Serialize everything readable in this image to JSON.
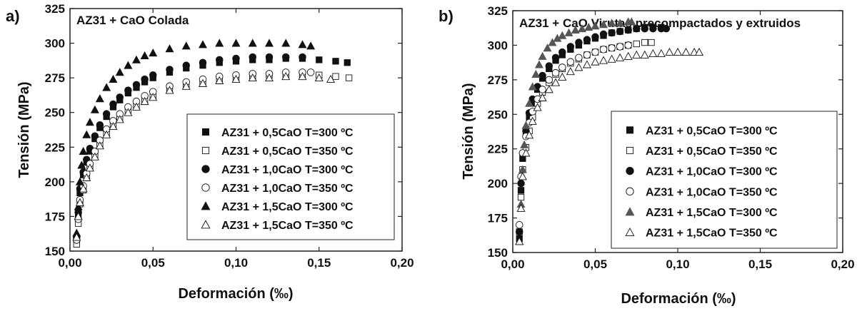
{
  "colors": {
    "ink": "#111111",
    "filled_a": "#111111",
    "filled_b_triangle": "#555555",
    "open": "#ffffff"
  },
  "chart_data": [
    {
      "panel": "a)",
      "type": "scatter",
      "title": "AZ31 + CaO Colada",
      "xlabel": "Deformación (‰)",
      "ylabel": "Tensión (MPa)",
      "xlim": [
        0,
        0.2
      ],
      "ylim": [
        150,
        325
      ],
      "xticks": [
        "0,00",
        "0,05",
        "0,10",
        "0,15",
        "0,20"
      ],
      "yticks": [
        "150",
        "175",
        "200",
        "225",
        "250",
        "275",
        "300",
        "325"
      ],
      "grid": false,
      "legend_position": "lower-right",
      "series": [
        {
          "name": "AZ31 + 0,5CaO  T=300 ºC",
          "marker": "square",
          "filled": true,
          "x": [
            0.004,
            0.005,
            0.006,
            0.008,
            0.01,
            0.012,
            0.015,
            0.018,
            0.022,
            0.026,
            0.03,
            0.035,
            0.04,
            0.045,
            0.05,
            0.06,
            0.07,
            0.08,
            0.09,
            0.1,
            0.11,
            0.12,
            0.13,
            0.14,
            0.15,
            0.16,
            0.167
          ],
          "y": [
            158,
            175,
            192,
            205,
            214,
            222,
            231,
            239,
            247,
            254,
            259,
            264,
            268,
            272,
            275,
            279,
            282,
            284,
            286,
            287,
            288,
            288,
            289,
            289,
            288,
            287,
            286
          ]
        },
        {
          "name": "AZ31 + 0,5CaO  T=350 ºC",
          "marker": "square",
          "filled": false,
          "x": [
            0.004,
            0.005,
            0.006,
            0.008,
            0.01,
            0.012,
            0.015,
            0.018,
            0.022,
            0.026,
            0.03,
            0.035,
            0.04,
            0.045,
            0.05,
            0.06,
            0.07,
            0.08,
            0.09,
            0.1,
            0.11,
            0.12,
            0.13,
            0.14,
            0.15,
            0.16,
            0.168
          ],
          "y": [
            155,
            170,
            184,
            194,
            203,
            210,
            219,
            227,
            235,
            241,
            246,
            251,
            255,
            259,
            262,
            266,
            270,
            272,
            274,
            275,
            276,
            277,
            277,
            277,
            277,
            276,
            275
          ]
        },
        {
          "name": "AZ31 + 1,0CaO  T=300 ºC",
          "marker": "circle",
          "filled": true,
          "x": [
            0.004,
            0.005,
            0.006,
            0.008,
            0.01,
            0.012,
            0.015,
            0.018,
            0.022,
            0.026,
            0.03,
            0.035,
            0.04,
            0.045,
            0.05,
            0.06,
            0.07,
            0.08,
            0.09,
            0.1,
            0.11,
            0.12,
            0.13,
            0.14
          ],
          "y": [
            160,
            178,
            195,
            207,
            216,
            224,
            233,
            241,
            249,
            256,
            261,
            266,
            270,
            274,
            277,
            281,
            284,
            286,
            288,
            289,
            290,
            290,
            290,
            290
          ]
        },
        {
          "name": "AZ31 + 1,0CaO  T=350 ºC",
          "marker": "circle",
          "filled": false,
          "x": [
            0.004,
            0.005,
            0.006,
            0.008,
            0.01,
            0.012,
            0.015,
            0.018,
            0.022,
            0.026,
            0.03,
            0.035,
            0.04,
            0.045,
            0.05,
            0.06,
            0.07,
            0.08,
            0.09,
            0.1,
            0.11,
            0.12,
            0.13,
            0.14,
            0.145
          ],
          "y": [
            158,
            173,
            187,
            197,
            206,
            213,
            222,
            230,
            238,
            244,
            249,
            254,
            258,
            262,
            265,
            269,
            272,
            274,
            276,
            277,
            278,
            278,
            279,
            279,
            279
          ]
        },
        {
          "name": "AZ31 + 1,5CaO  T=300 ºC",
          "marker": "triangle",
          "filled": true,
          "x": [
            0.004,
            0.005,
            0.006,
            0.007,
            0.008,
            0.01,
            0.012,
            0.015,
            0.018,
            0.022,
            0.026,
            0.03,
            0.035,
            0.04,
            0.045,
            0.05,
            0.06,
            0.07,
            0.08,
            0.09,
            0.1,
            0.11,
            0.12,
            0.13,
            0.14,
            0.145
          ],
          "y": [
            163,
            182,
            200,
            212,
            222,
            234,
            243,
            252,
            260,
            268,
            274,
            279,
            284,
            288,
            291,
            293,
            296,
            298,
            299,
            300,
            300,
            300,
            300,
            300,
            299,
            298
          ]
        },
        {
          "name": "AZ31 + 1,5CaO  T=350 ºC",
          "marker": "triangle",
          "filled": false,
          "x": [
            0.004,
            0.005,
            0.006,
            0.008,
            0.01,
            0.012,
            0.015,
            0.018,
            0.022,
            0.026,
            0.03,
            0.035,
            0.04,
            0.045,
            0.05,
            0.06,
            0.07,
            0.08,
            0.09,
            0.1,
            0.11,
            0.12,
            0.13,
            0.14,
            0.15,
            0.157
          ],
          "y": [
            160,
            175,
            185,
            195,
            203,
            210,
            218,
            226,
            234,
            240,
            245,
            250,
            254,
            258,
            261,
            266,
            269,
            271,
            273,
            274,
            275,
            275,
            276,
            276,
            275,
            274
          ]
        }
      ]
    },
    {
      "panel": "b)",
      "type": "scatter",
      "title": "AZ31 + CaO Virutas precompactados y extruidos",
      "xlabel": "Deformación (‰)",
      "ylabel": "Tensión (MPa)",
      "xlim": [
        0,
        0.2
      ],
      "ylim": [
        150,
        325
      ],
      "xticks": [
        "0,00",
        "0,05",
        "0,10",
        "0,15",
        "0,20"
      ],
      "yticks": [
        "150",
        "175",
        "200",
        "225",
        "250",
        "275",
        "300",
        "325"
      ],
      "grid": false,
      "legend_position": "lower-right",
      "series": [
        {
          "name": "AZ31 + 0,5CaO  T=300 ºC",
          "marker": "square",
          "filled": true,
          "x": [
            0.004,
            0.005,
            0.006,
            0.008,
            0.01,
            0.012,
            0.015,
            0.018,
            0.022,
            0.026,
            0.03,
            0.035,
            0.04,
            0.045,
            0.05,
            0.055,
            0.06,
            0.065,
            0.07,
            0.075,
            0.08,
            0.085,
            0.09
          ],
          "y": [
            160,
            195,
            218,
            235,
            248,
            258,
            268,
            276,
            283,
            289,
            293,
            297,
            300,
            303,
            305,
            307,
            309,
            310,
            311,
            312,
            313,
            313,
            313
          ]
        },
        {
          "name": "AZ31 + 0,5CaO  T=350 ºC",
          "marker": "square",
          "filled": false,
          "x": [
            0.004,
            0.005,
            0.006,
            0.008,
            0.01,
            0.012,
            0.015,
            0.018,
            0.022,
            0.026,
            0.03,
            0.035,
            0.04,
            0.045,
            0.05,
            0.055,
            0.06,
            0.065,
            0.07,
            0.075,
            0.08,
            0.084
          ],
          "y": [
            165,
            190,
            210,
            226,
            238,
            248,
            258,
            266,
            273,
            279,
            283,
            287,
            290,
            293,
            295,
            297,
            298,
            299,
            300,
            301,
            302,
            302
          ]
        },
        {
          "name": "AZ31 + 1,0CaO  T=300 ºC",
          "marker": "circle",
          "filled": true,
          "x": [
            0.004,
            0.005,
            0.006,
            0.008,
            0.01,
            0.012,
            0.015,
            0.018,
            0.022,
            0.026,
            0.03,
            0.035,
            0.04,
            0.045,
            0.05,
            0.055,
            0.06,
            0.065,
            0.07,
            0.075,
            0.08,
            0.085,
            0.09,
            0.093
          ],
          "y": [
            165,
            200,
            222,
            238,
            251,
            261,
            270,
            278,
            285,
            291,
            295,
            299,
            302,
            304,
            306,
            308,
            309,
            310,
            311,
            312,
            312,
            312,
            312,
            312
          ]
        },
        {
          "name": "AZ31 + 1,0CaO  T=350 ºC",
          "marker": "circle",
          "filled": false,
          "x": [
            0.004,
            0.005,
            0.006,
            0.008,
            0.01,
            0.012,
            0.015,
            0.018,
            0.022,
            0.026,
            0.03,
            0.035,
            0.04,
            0.045,
            0.05,
            0.055,
            0.06,
            0.065,
            0.07
          ],
          "y": [
            170,
            205,
            222,
            234,
            244,
            252,
            261,
            268,
            275,
            280,
            284,
            288,
            291,
            293,
            295,
            297,
            298,
            299,
            300
          ]
        },
        {
          "name": "AZ31 + 1,5CaO  T=300 ºC",
          "marker": "triangle",
          "filled": true,
          "x": [
            0.004,
            0.005,
            0.006,
            0.007,
            0.008,
            0.01,
            0.012,
            0.014,
            0.016,
            0.018,
            0.021,
            0.024,
            0.027,
            0.03,
            0.034,
            0.038,
            0.042,
            0.046,
            0.05,
            0.055,
            0.06,
            0.065,
            0.07,
            0.072
          ],
          "y": [
            158,
            185,
            210,
            228,
            242,
            258,
            270,
            279,
            286,
            292,
            298,
            302,
            305,
            307,
            309,
            311,
            312,
            313,
            314,
            315,
            316,
            316,
            317,
            317
          ]
        },
        {
          "name": "AZ31 + 1,5CaO  T=350 ºC",
          "marker": "triangle",
          "filled": false,
          "x": [
            0.004,
            0.005,
            0.006,
            0.008,
            0.01,
            0.012,
            0.015,
            0.018,
            0.022,
            0.026,
            0.03,
            0.035,
            0.04,
            0.045,
            0.05,
            0.055,
            0.06,
            0.065,
            0.07,
            0.075,
            0.08,
            0.085,
            0.09,
            0.095,
            0.1,
            0.105,
            0.11,
            0.113
          ],
          "y": [
            158,
            182,
            205,
            222,
            235,
            245,
            255,
            262,
            268,
            273,
            277,
            281,
            284,
            286,
            288,
            289,
            290,
            291,
            292,
            293,
            293,
            294,
            294,
            295,
            295,
            295,
            295,
            295
          ]
        }
      ]
    }
  ]
}
